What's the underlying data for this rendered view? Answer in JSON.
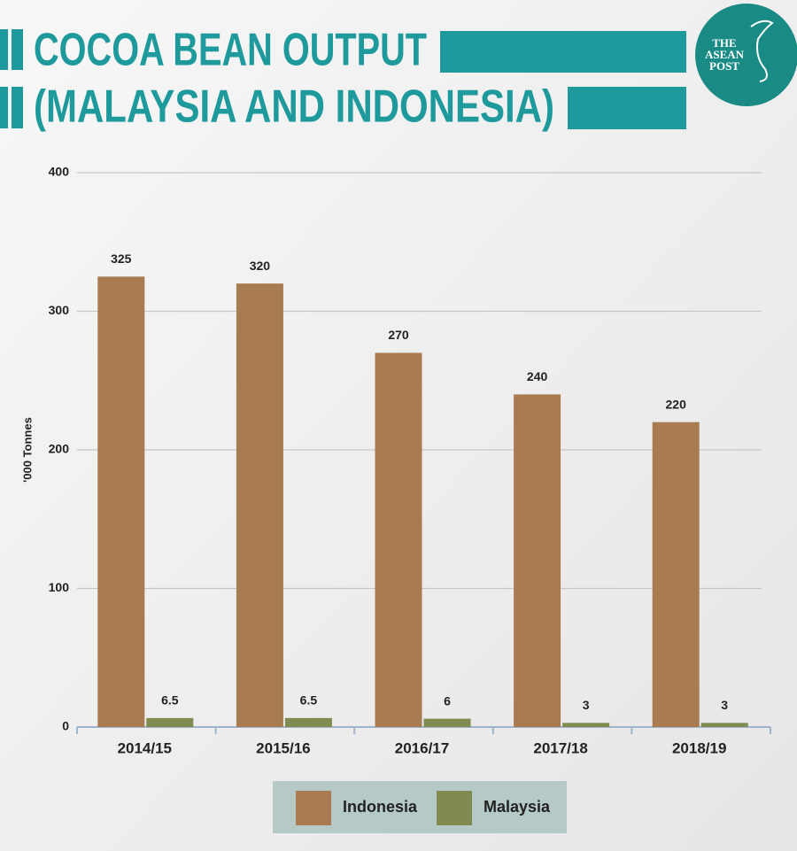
{
  "logo": {
    "lines": [
      "THE",
      "ASEAN",
      "POST"
    ]
  },
  "chart_data": {
    "type": "bar",
    "title": [
      "COCOA BEAN OUTPUT",
      "(MALAYSIA AND INDONESIA)"
    ],
    "y_label": "'000 Tonnes",
    "categories": [
      "2014/15",
      "2015/16",
      "2016/17",
      "2017/18",
      "2018/19"
    ],
    "series": [
      {
        "name": "Indonesia",
        "color": "#a87b50",
        "values": [
          325,
          320,
          270,
          240,
          220
        ]
      },
      {
        "name": "Malaysia",
        "color": "#7f8b50",
        "values": [
          6.5,
          6.5,
          6,
          3,
          3
        ]
      }
    ],
    "ylim": [
      0,
      400
    ],
    "yticks": [
      0,
      100,
      200,
      300,
      400
    ],
    "grid": true,
    "legend": "bottom"
  }
}
